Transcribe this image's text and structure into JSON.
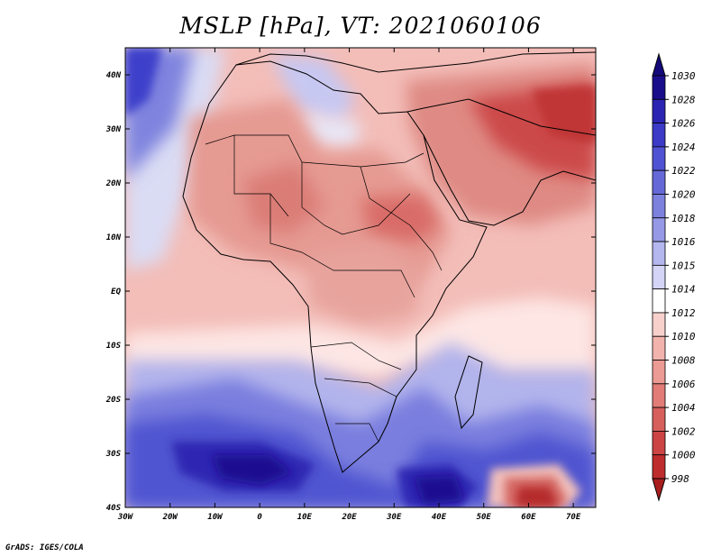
{
  "title": "MSLP [hPa], VT: 2021060106",
  "credit": "GrADS: IGES/COLA",
  "map": {
    "lon_labels": [
      "30W",
      "20W",
      "10W",
      "0",
      "10E",
      "20E",
      "30E",
      "40E",
      "50E",
      "60E",
      "70E"
    ],
    "lat_labels": [
      "40N",
      "30N",
      "20N",
      "10N",
      "EQ",
      "10S",
      "20S",
      "30S",
      "40S"
    ],
    "lon_range": [
      -30,
      75
    ],
    "lat_range": [
      -40,
      45
    ]
  },
  "colorbar": {
    "levels": [
      "1030",
      "1028",
      "1026",
      "1024",
      "1022",
      "1020",
      "1018",
      "1016",
      "1015",
      "1014",
      "1012",
      "1010",
      "1008",
      "1006",
      "1004",
      "1002",
      "1000",
      "998"
    ],
    "colors": [
      "#1a0d8c",
      "#2b24b2",
      "#3b3bc8",
      "#4f52d2",
      "#6569d8",
      "#7c81de",
      "#9599e6",
      "#b4b6ee",
      "#d3d4f6",
      "#ffffff",
      "#f7d0cc",
      "#f2b3ad",
      "#eb9a94",
      "#e17c77",
      "#d65f5c",
      "#cc4444",
      "#be2d2d",
      "#a81e1e"
    ],
    "top_arrow_color": "#14097a",
    "bottom_arrow_color": "#a81e1e"
  }
}
